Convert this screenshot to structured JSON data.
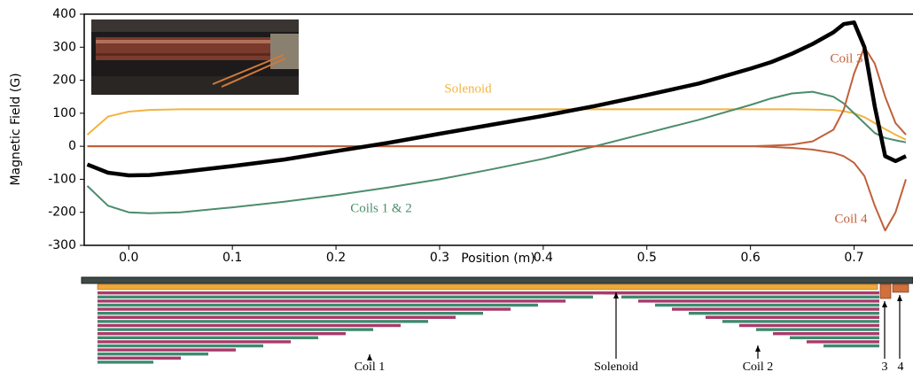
{
  "chart_data": {
    "type": "line",
    "x_label": "Position (m)",
    "y_label": "Magnetic Field (G)",
    "xlim": [
      -0.043,
      0.756
    ],
    "ylim": [
      -300,
      400
    ],
    "xticks": [
      {
        "value": 0,
        "label": "0.0"
      },
      0.1,
      0.2,
      0.3,
      0.4,
      0.5,
      0.6,
      0.7
    ],
    "yticks": [
      -300,
      -200,
      -100,
      0,
      100,
      200,
      300,
      400
    ],
    "x": [
      -0.04,
      -0.02,
      0,
      0.02,
      0.05,
      0.1,
      0.15,
      0.2,
      0.25,
      0.3,
      0.35,
      0.4,
      0.45,
      0.5,
      0.55,
      0.6,
      0.62,
      0.64,
      0.66,
      0.68,
      0.69,
      0.7,
      0.71,
      0.72,
      0.73,
      0.74,
      0.75
    ],
    "series": [
      {
        "name": "Solenoid",
        "color": "#f2b441",
        "values": [
          35,
          90,
          105,
          110,
          112,
          112,
          112,
          112,
          112,
          112,
          112,
          112,
          112,
          112,
          112,
          112,
          112,
          112,
          111,
          110,
          106,
          100,
          88,
          70,
          52,
          35,
          20
        ]
      },
      {
        "name": "Coils 1 & 2",
        "color": "#4c8c6c",
        "values": [
          -120,
          -180,
          -200,
          -203,
          -200,
          -185,
          -168,
          -148,
          -125,
          -100,
          -70,
          -38,
          0,
          40,
          80,
          125,
          145,
          160,
          165,
          150,
          130,
          100,
          70,
          40,
          25,
          18,
          12
        ]
      },
      {
        "name": "Coil 3",
        "color": "#c0603a",
        "values": [
          0,
          0,
          0,
          0,
          0,
          0,
          0,
          0,
          0,
          0,
          0,
          0,
          0,
          0,
          0,
          0,
          2,
          5,
          15,
          50,
          110,
          220,
          300,
          250,
          150,
          70,
          35
        ]
      },
      {
        "name": "Coil 4",
        "color": "#c0603a",
        "values": [
          0,
          0,
          0,
          0,
          0,
          0,
          0,
          0,
          0,
          0,
          0,
          0,
          0,
          0,
          0,
          0,
          -2,
          -5,
          -10,
          -20,
          -30,
          -50,
          -90,
          -180,
          -255,
          -200,
          -100
        ]
      },
      {
        "name": null,
        "color": "#000000",
        "values": [
          -55,
          -80,
          -88,
          -87,
          -78,
          -60,
          -40,
          -15,
          10,
          38,
          65,
          92,
          122,
          155,
          190,
          235,
          255,
          280,
          310,
          345,
          370,
          375,
          300,
          120,
          -30,
          -45,
          -30
        ]
      }
    ],
    "winding_labels": [
      "Coil 1",
      "Solenoid",
      "Coil 2",
      "3",
      "4"
    ]
  }
}
